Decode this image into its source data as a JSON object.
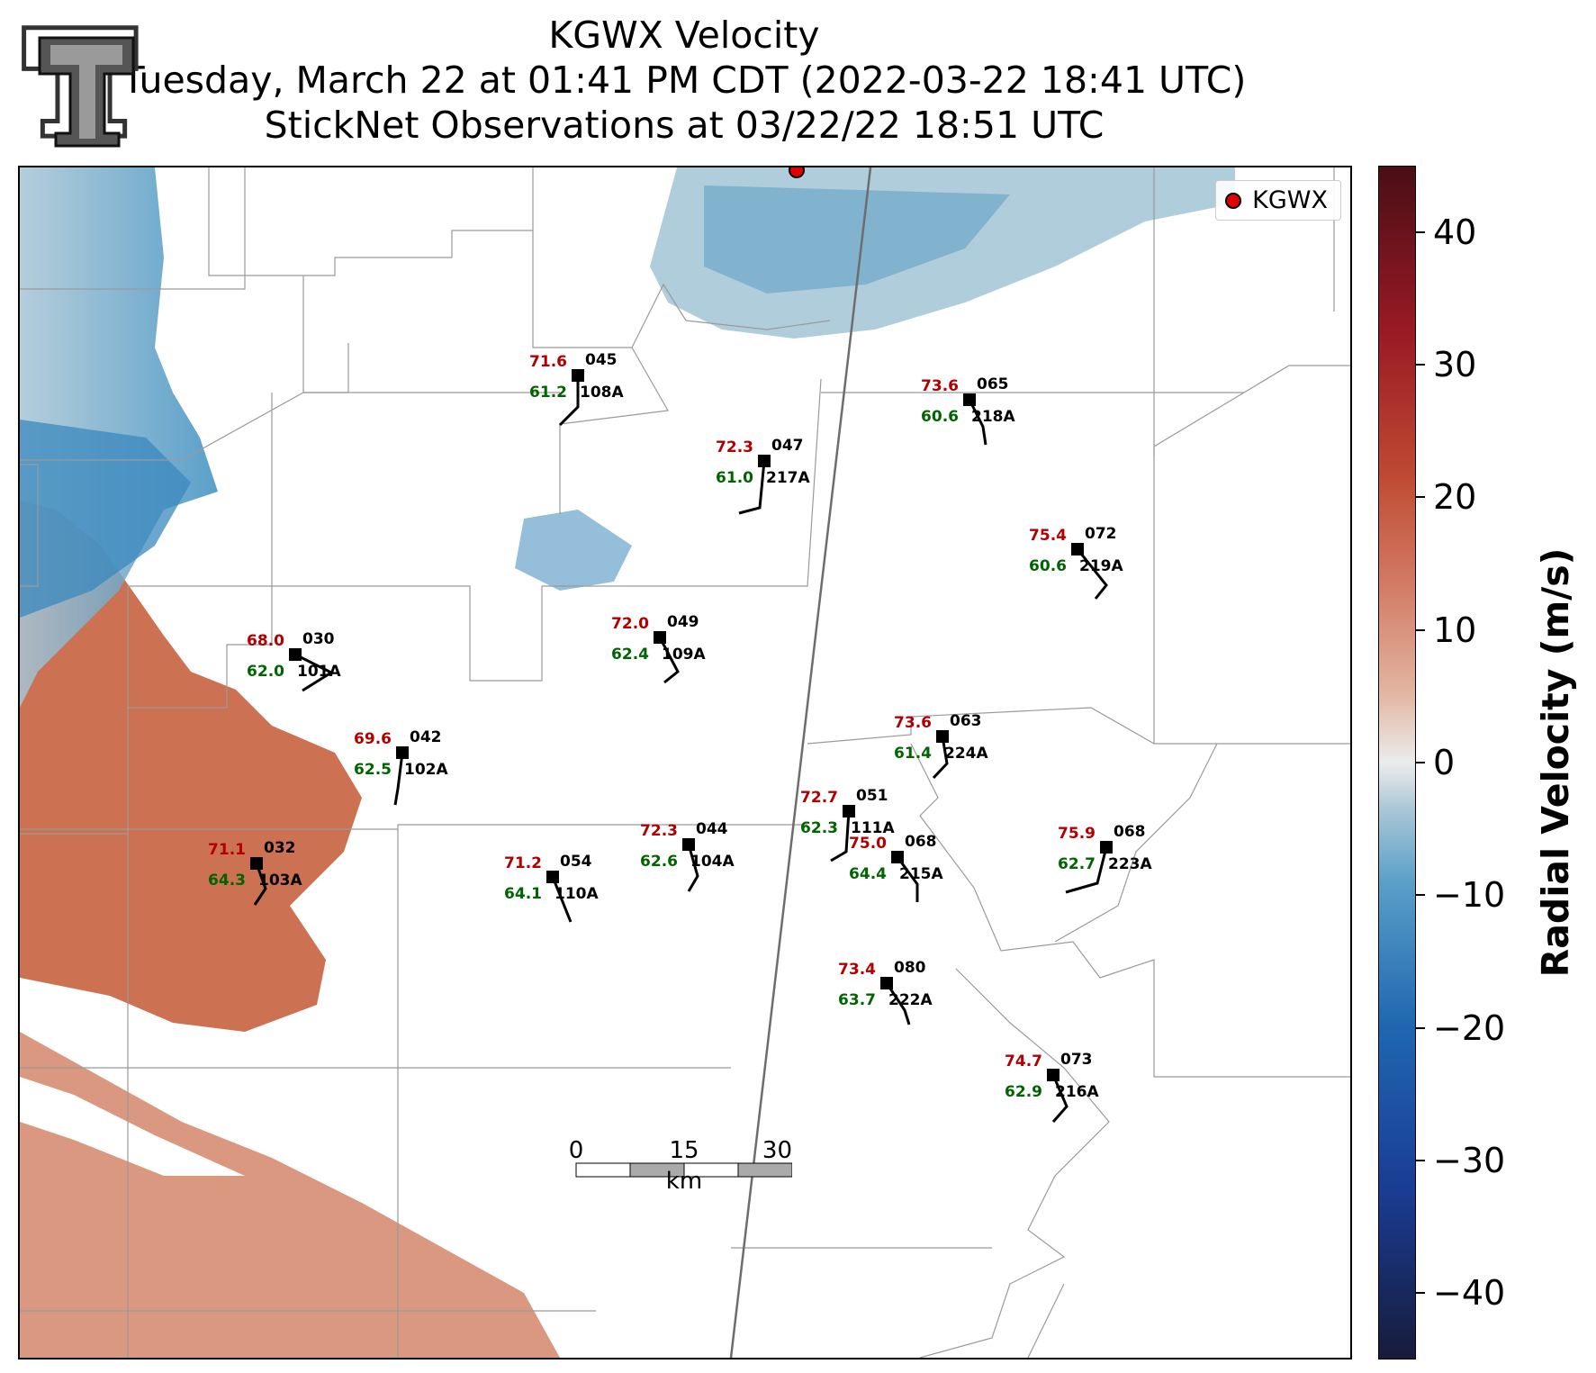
{
  "title": {
    "line1": "KGWX Velocity",
    "line2": "Tuesday, March 22 at 01:41 PM CDT (2022-03-22 18:41 UTC)",
    "line3": "StickNet Observations at 03/22/22 18:51 UTC"
  },
  "legend": {
    "label": "KGWX",
    "marker_color": "#e00000"
  },
  "colorbar": {
    "title": "Radial Velocity (m/s)",
    "ticks": [
      "40",
      "30",
      "20",
      "10",
      "0",
      "−10",
      "−20",
      "−30",
      "−40"
    ],
    "tick_values": [
      40,
      30,
      20,
      10,
      0,
      -10,
      -20,
      -30,
      -40
    ],
    "range": [
      -45,
      45
    ],
    "colors": [
      "#171b3c",
      "#1f67b0",
      "#a9c6d6",
      "#ececec",
      "#d4806a",
      "#9a1a24",
      "#4a0e16"
    ]
  },
  "scalebar": {
    "ticks": [
      "0",
      "15",
      "30"
    ],
    "unit": "km"
  },
  "logo": {
    "name": "Texas Tech double-T logo"
  },
  "colors": {
    "temperature": "#b20000",
    "dewpoint": "#006400",
    "station_id": "#000000"
  },
  "stations": [
    {
      "id": "108A",
      "temp": "71.6",
      "dew": "61.2",
      "pressure": "045"
    },
    {
      "id": "217A",
      "temp": "72.3",
      "dew": "61.0",
      "pressure": "047"
    },
    {
      "id": "218A",
      "temp": "73.6",
      "dew": "60.6",
      "pressure": "065"
    },
    {
      "id": "219A",
      "temp": "75.4",
      "dew": "60.6",
      "pressure": "072"
    },
    {
      "id": "101A",
      "temp": "68.0",
      "dew": "62.0",
      "pressure": "030"
    },
    {
      "id": "109A",
      "temp": "72.0",
      "dew": "62.4",
      "pressure": "049"
    },
    {
      "id": "102A",
      "temp": "69.6",
      "dew": "62.5",
      "pressure": "042"
    },
    {
      "id": "224A",
      "temp": "73.6",
      "dew": "61.4",
      "pressure": "063"
    },
    {
      "id": "111A",
      "temp": "72.7",
      "dew": "62.3",
      "pressure": "051"
    },
    {
      "id": "103A",
      "temp": "71.1",
      "dew": "64.3",
      "pressure": "032"
    },
    {
      "id": "110A",
      "temp": "71.2",
      "dew": "64.1",
      "pressure": "054"
    },
    {
      "id": "104A",
      "temp": "72.3",
      "dew": "62.6",
      "pressure": "044"
    },
    {
      "id": "215A",
      "temp": "75.0",
      "dew": "64.4",
      "pressure": "068"
    },
    {
      "id": "223A",
      "temp": "75.9",
      "dew": "62.7",
      "pressure": "068"
    },
    {
      "id": "222A",
      "temp": "73.4",
      "dew": "63.7",
      "pressure": "080"
    },
    {
      "id": "216A",
      "temp": "74.7",
      "dew": "62.9",
      "pressure": "073"
    }
  ]
}
